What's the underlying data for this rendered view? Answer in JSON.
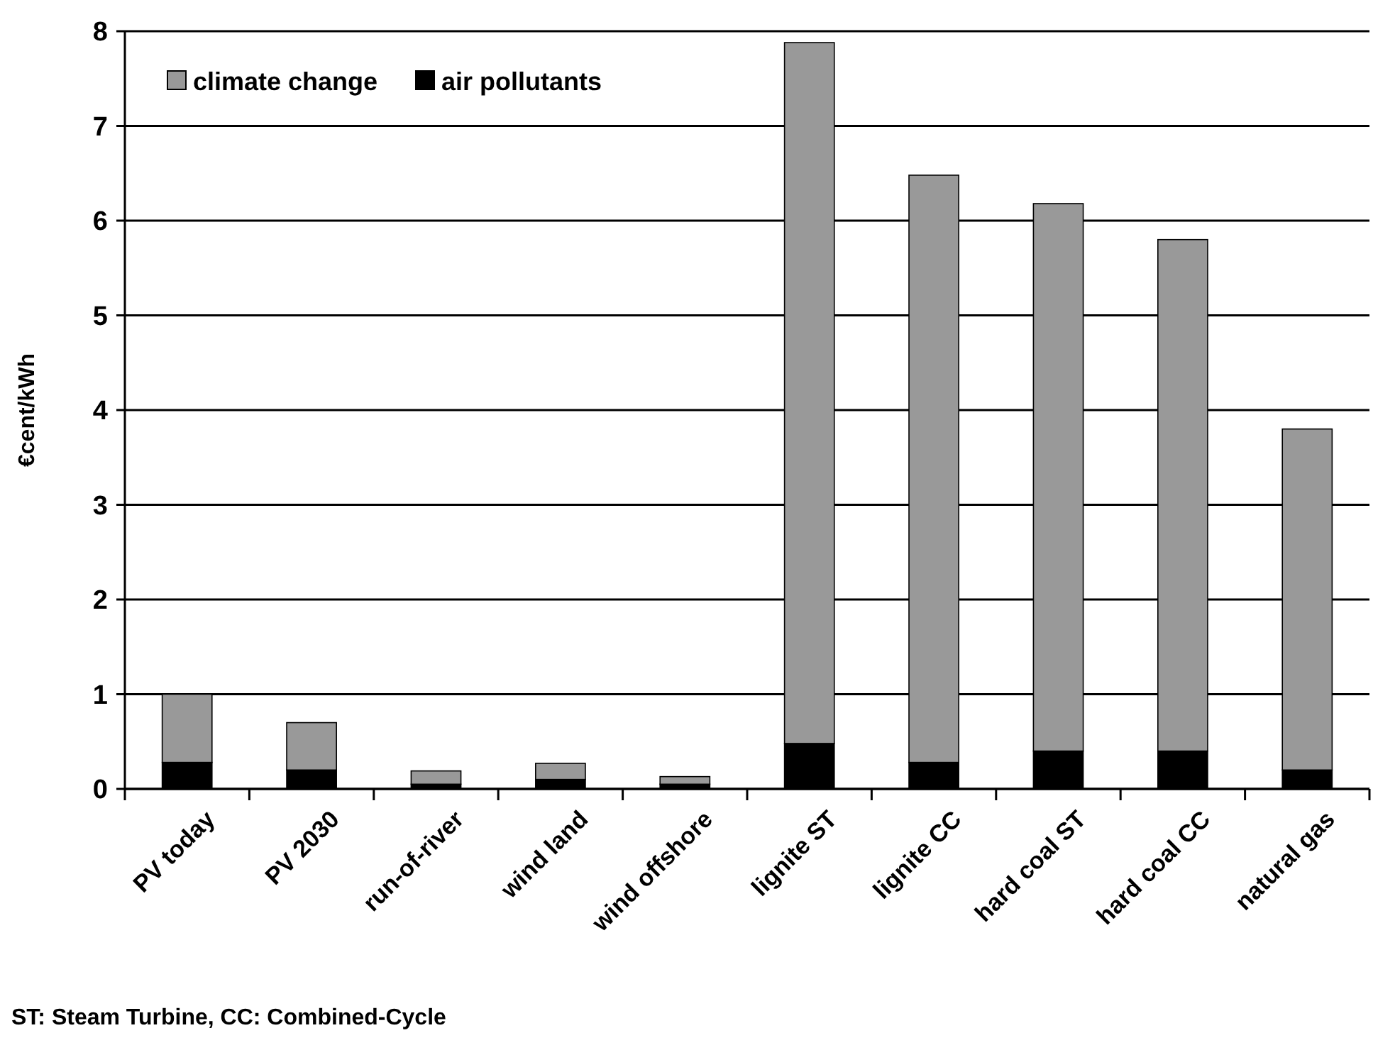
{
  "chart_data": {
    "type": "bar",
    "stacked": true,
    "ylabel": "€cent/kWh",
    "categories": [
      "PV today",
      "PV 2030",
      "run-of-river",
      "wind land",
      "wind offshore",
      "lignite ST",
      "lignite CC",
      "hard coal ST",
      "hard coal CC",
      "natural gas"
    ],
    "series": [
      {
        "name": "air pollutants",
        "color": "#000000",
        "values": [
          0.28,
          0.2,
          0.05,
          0.1,
          0.05,
          0.48,
          0.28,
          0.4,
          0.4,
          0.2
        ]
      },
      {
        "name": "climate change",
        "color": "#999999",
        "values": [
          0.72,
          0.5,
          0.14,
          0.17,
          0.08,
          7.4,
          6.2,
          5.78,
          5.4,
          3.6
        ]
      }
    ],
    "ylim": [
      0,
      8
    ],
    "yticks": [
      0,
      1,
      2,
      3,
      4,
      5,
      6,
      7,
      8
    ],
    "grid": "y",
    "legend": "top left",
    "annotations": [
      "ST: Steam Turbine, CC: Combined-Cycle"
    ]
  }
}
